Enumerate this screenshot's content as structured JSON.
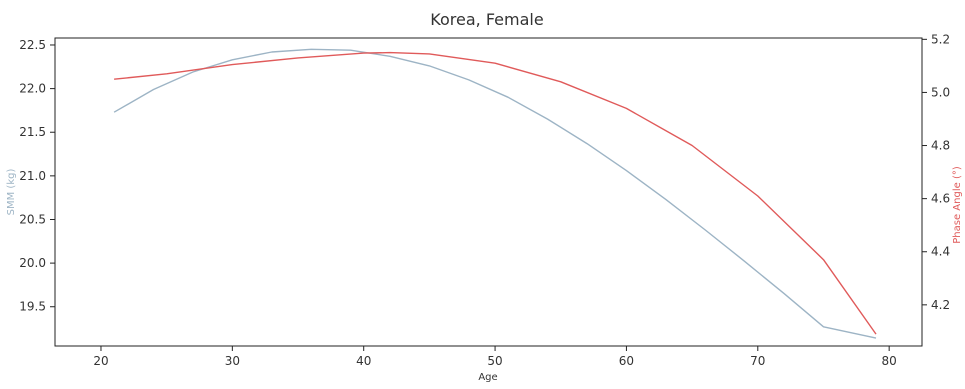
{
  "chart_data": {
    "type": "line",
    "title": "Korea, Female",
    "xlabel": "Age",
    "ylabel_left": "SMM (kg)",
    "ylabel_right": "Phase Angle (°)",
    "xlim": [
      16.5,
      82.5
    ],
    "ylim_left": [
      19.05,
      22.58
    ],
    "ylim_right": [
      4.045,
      5.205
    ],
    "x_ticks": [
      20,
      30,
      40,
      50,
      60,
      70,
      80
    ],
    "y_left_ticks": [
      19.5,
      20.0,
      20.5,
      21.0,
      21.5,
      22.0,
      22.5
    ],
    "y_left_tick_labels": [
      "19.5",
      "20.0",
      "20.5",
      "21.0",
      "21.5",
      "22.0",
      "22.5"
    ],
    "y_right_ticks": [
      4.2,
      4.4,
      4.6,
      4.8,
      5.0,
      5.2
    ],
    "y_right_tick_labels": [
      "4.2",
      "4.4",
      "4.6",
      "4.8",
      "5.0",
      "5.2"
    ],
    "grid": false,
    "legend": "none",
    "colors": {
      "smm": "#9db4c5",
      "phase": "#e05a5a",
      "axis": "#222222"
    },
    "series": [
      {
        "axis": "left",
        "x": [
          21,
          24,
          27,
          30,
          33,
          36,
          39,
          42,
          45,
          48,
          51,
          54,
          57,
          60,
          63,
          66,
          69,
          72,
          75,
          79
        ],
        "values": [
          21.73,
          21.99,
          22.19,
          22.33,
          22.42,
          22.45,
          22.44,
          22.37,
          22.26,
          22.1,
          21.9,
          21.65,
          21.37,
          21.06,
          20.73,
          20.38,
          20.02,
          19.65,
          19.27,
          19.14
        ]
      },
      {
        "axis": "right",
        "x": [
          21,
          25,
          30,
          35,
          40,
          42,
          45,
          50,
          55,
          60,
          65,
          70,
          75,
          79
        ],
        "values": [
          5.05,
          5.07,
          5.105,
          5.13,
          5.148,
          5.15,
          5.145,
          5.11,
          5.04,
          4.94,
          4.8,
          4.61,
          4.37,
          4.09
        ]
      }
    ]
  }
}
